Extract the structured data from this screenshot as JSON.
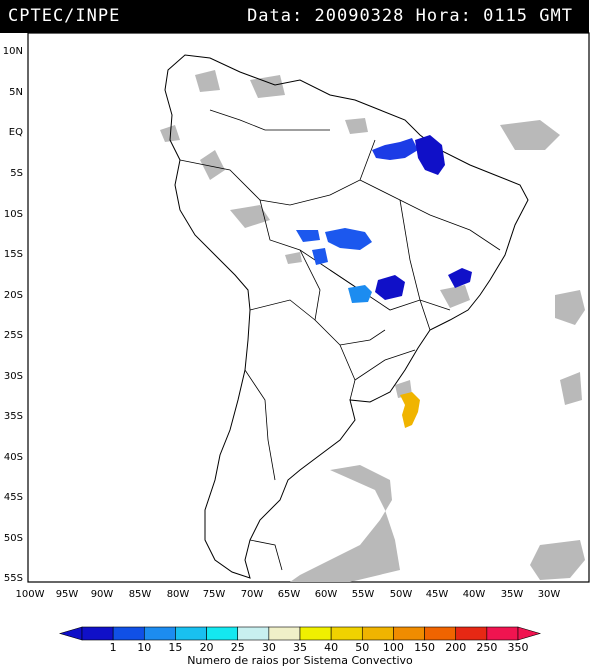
{
  "header": {
    "org": "CPTEC/INPE",
    "date_label": "Data:",
    "date": "20090328",
    "time_label": "Hora:",
    "time": "0115",
    "tz": "GMT"
  },
  "map": {
    "lat_labels": [
      "10N",
      "5N",
      "EQ",
      "5S",
      "10S",
      "15S",
      "20S",
      "25S",
      "30S",
      "35S",
      "40S",
      "45S",
      "50S",
      "55S"
    ],
    "lon_labels": [
      "100W",
      "95W",
      "90W",
      "85W",
      "80W",
      "75W",
      "70W",
      "65W",
      "60W",
      "55W",
      "50W",
      "45W",
      "40W",
      "35W",
      "30W"
    ],
    "cloud_color": "#b8b8b8",
    "coast_color": "#000000"
  },
  "legend": {
    "title": "Numero de raios por Sistema Convectivo",
    "ticks": [
      "1",
      "10",
      "15",
      "20",
      "25",
      "30",
      "35",
      "40",
      "50",
      "100",
      "150",
      "200",
      "250",
      "350"
    ],
    "colors": [
      "#1010c8",
      "#1050e6",
      "#1c8cf0",
      "#19c0f0",
      "#14e8f0",
      "#c8f0f0",
      "#f0f0c8",
      "#f0f000",
      "#f0d200",
      "#f0b400",
      "#f08c00",
      "#f06400",
      "#e62814",
      "#f01450"
    ]
  },
  "systems": [
    {
      "region": "Amazon mouth",
      "lightning_bin": "1",
      "color": "#1c3ce6"
    },
    {
      "region": "Maranhao/Para",
      "lightning_bin": "1",
      "color": "#1010c8"
    },
    {
      "region": "Mato Grosso north",
      "lightning_bin": "10",
      "color": "#1c58ee"
    },
    {
      "region": "Mato Grosso west",
      "lightning_bin": "10",
      "color": "#1c58ee"
    },
    {
      "region": "Sao Paulo/Goias",
      "lightning_bin": "1",
      "color": "#1010c8"
    },
    {
      "region": "Mato Grosso do Sul",
      "lightning_bin": "15",
      "color": "#1c8cf0"
    },
    {
      "region": "Minas Gerais",
      "lightning_bin": "1",
      "color": "#1010c8"
    },
    {
      "region": "Atlantic offshore Uruguay",
      "lightning_bin": "100",
      "color": "#f0b400"
    }
  ]
}
